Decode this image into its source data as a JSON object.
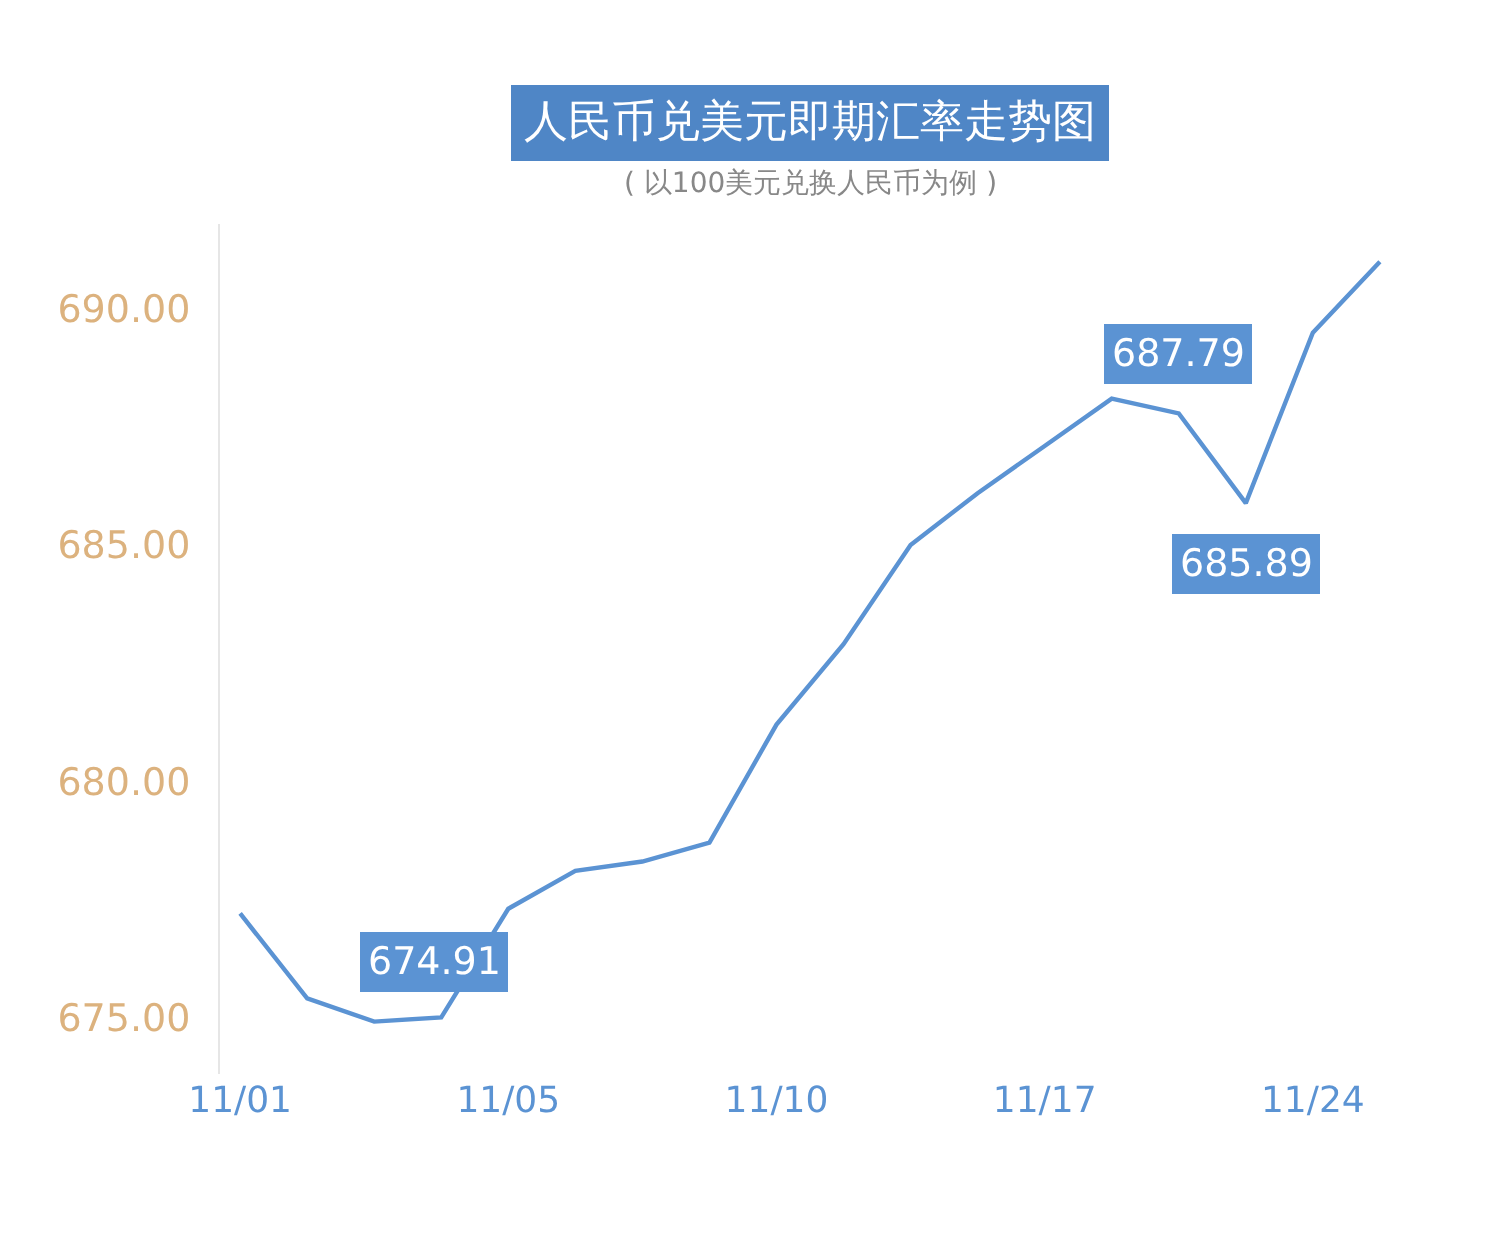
{
  "chart_data": {
    "type": "line",
    "title": "人民币兑美元即期汇率走势图",
    "subtitle": "( 以100美元兑换人民币为例 )",
    "categories": [
      "11/01",
      null,
      null,
      null,
      "11/05",
      null,
      null,
      null,
      "11/10",
      null,
      null,
      null,
      "11/17",
      null,
      null,
      null,
      "11/24",
      null
    ],
    "series": [
      {
        "color": "#5b93d3",
        "values": [
          677.2,
          675.4,
          674.91,
          675.0,
          677.3,
          678.1,
          678.3,
          678.7,
          681.2,
          682.9,
          685.0,
          686.1,
          687.1,
          688.1,
          687.79,
          685.89,
          689.5,
          691.0
        ],
        "value_labels": [
          null,
          null,
          "674.91",
          null,
          null,
          null,
          null,
          null,
          null,
          null,
          null,
          null,
          null,
          null,
          "687.79",
          "685.89",
          null,
          null
        ]
      }
    ],
    "ylim": [
      673.8,
      691.8
    ],
    "yticks": [
      {
        "value": 675,
        "label": "675.00"
      },
      {
        "value": 680,
        "label": "680.00"
      },
      {
        "value": 685,
        "label": "685.00"
      },
      {
        "value": 690,
        "label": "690.00"
      }
    ],
    "marker": "none",
    "line_style": "solid"
  }
}
